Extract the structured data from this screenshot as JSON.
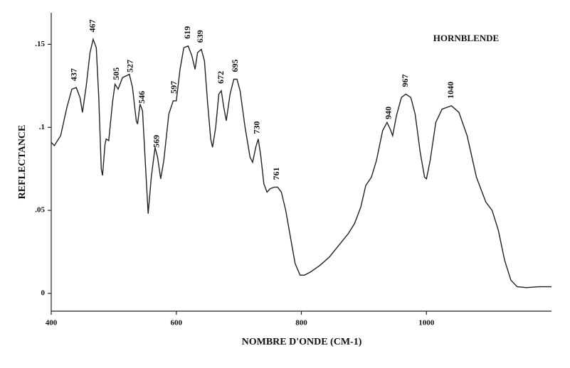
{
  "chart_data": {
    "type": "line",
    "title": "HORNBLENDE",
    "x_label": "NOMBRE D'ONDE (CM-1)",
    "y_label": "REFLECTANCE",
    "xlim": [
      400,
      1200
    ],
    "ylim": [
      -0.0107,
      0.169
    ],
    "xticks": [
      400,
      600,
      800,
      1000
    ],
    "yticks": [
      0,
      {
        "value": 0.05,
        "label": ".05"
      },
      {
        "value": 0.1,
        "label": ".1"
      },
      {
        "value": 0.15,
        "label": ".15"
      }
    ],
    "color": "#222222",
    "x": [
      400,
      405,
      415,
      425,
      433,
      440,
      446,
      450,
      456,
      462,
      467,
      472,
      476,
      480,
      482,
      486,
      488,
      492,
      498,
      502,
      507,
      514,
      520,
      525,
      530,
      536,
      538,
      542,
      546,
      551,
      555,
      560,
      566,
      570,
      575,
      580,
      588,
      595,
      600,
      606,
      612,
      619,
      625,
      630,
      634,
      640,
      645,
      650,
      655,
      658,
      663,
      668,
      672,
      676,
      680,
      686,
      692,
      697,
      702,
      710,
      718,
      722,
      727,
      731,
      735,
      740,
      745,
      750,
      757,
      762,
      768,
      775,
      782,
      790,
      798,
      805,
      815,
      830,
      845,
      860,
      875,
      885,
      895,
      903,
      912,
      920,
      930,
      937,
      942,
      946,
      952,
      960,
      967,
      975,
      982,
      990,
      997,
      1000,
      1006,
      1015,
      1025,
      1040,
      1052,
      1065,
      1080,
      1095,
      1105,
      1115,
      1125,
      1135,
      1145,
      1160,
      1180,
      1200
    ],
    "values": [
      0.091,
      0.089,
      0.095,
      0.112,
      0.123,
      0.124,
      0.118,
      0.109,
      0.125,
      0.145,
      0.153,
      0.148,
      0.118,
      0.075,
      0.071,
      0.09,
      0.093,
      0.092,
      0.115,
      0.126,
      0.123,
      0.13,
      0.131,
      0.132,
      0.124,
      0.104,
      0.102,
      0.114,
      0.11,
      0.075,
      0.048,
      0.07,
      0.088,
      0.082,
      0.069,
      0.08,
      0.108,
      0.116,
      0.116,
      0.135,
      0.148,
      0.149,
      0.143,
      0.135,
      0.145,
      0.147,
      0.14,
      0.115,
      0.093,
      0.088,
      0.1,
      0.12,
      0.122,
      0.112,
      0.104,
      0.12,
      0.129,
      0.129,
      0.122,
      0.1,
      0.082,
      0.079,
      0.088,
      0.093,
      0.083,
      0.066,
      0.061,
      0.063,
      0.064,
      0.064,
      0.061,
      0.05,
      0.035,
      0.018,
      0.011,
      0.011,
      0.013,
      0.017,
      0.022,
      0.029,
      0.036,
      0.042,
      0.052,
      0.065,
      0.07,
      0.08,
      0.098,
      0.103,
      0.099,
      0.095,
      0.107,
      0.118,
      0.12,
      0.118,
      0.108,
      0.085,
      0.07,
      0.069,
      0.08,
      0.103,
      0.111,
      0.113,
      0.109,
      0.095,
      0.07,
      0.055,
      0.05,
      0.038,
      0.02,
      0.008,
      0.004,
      0.0035,
      0.004,
      0.004
    ],
    "annotations": [
      {
        "label": "437",
        "x": 437
      },
      {
        "label": "467",
        "x": 467
      },
      {
        "label": "505",
        "x": 505
      },
      {
        "label": "527",
        "x": 527
      },
      {
        "label": "546",
        "x": 546
      },
      {
        "label": "569",
        "x": 569
      },
      {
        "label": "597",
        "x": 597
      },
      {
        "label": "619",
        "x": 619
      },
      {
        "label": "639",
        "x": 639
      },
      {
        "label": "672",
        "x": 672
      },
      {
        "label": "695",
        "x": 695
      },
      {
        "label": "730",
        "x": 730
      },
      {
        "label": "761",
        "x": 761
      },
      {
        "label": "940",
        "x": 940
      },
      {
        "label": "967",
        "x": 967
      },
      {
        "label": "1040",
        "x": 1040
      }
    ]
  }
}
